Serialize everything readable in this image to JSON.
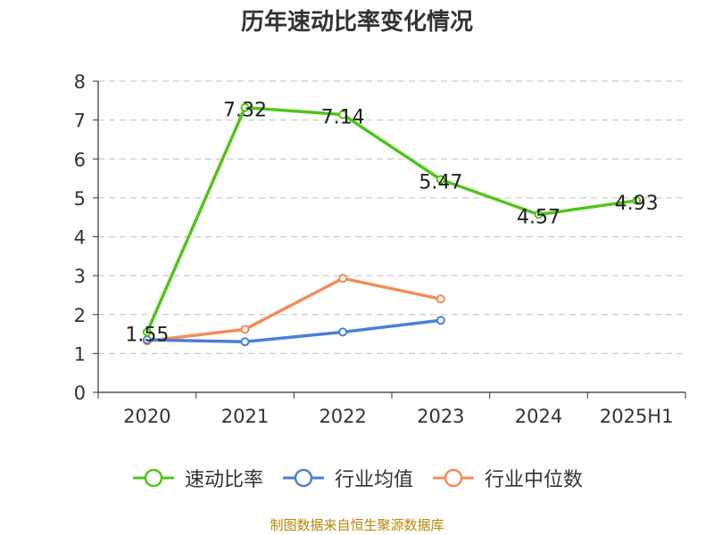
{
  "chart_data": {
    "type": "line",
    "title": "历年速动比率变化情况",
    "categories": [
      "2020",
      "2021",
      "2022",
      "2023",
      "2024",
      "2025H1"
    ],
    "ylim": [
      0,
      8
    ],
    "yticks": [
      0,
      1,
      2,
      3,
      4,
      5,
      6,
      7,
      8
    ],
    "grid": true,
    "legend_position": "bottom",
    "series": [
      {
        "name": "速动比率",
        "color": "#52c41a",
        "values": [
          1.55,
          7.32,
          7.14,
          5.47,
          4.57,
          4.93
        ],
        "labels": [
          "1.55",
          "7.32",
          "7.14",
          "5.47",
          "4.57",
          "4.93"
        ]
      },
      {
        "name": "行业均值",
        "color": "#4a7fd8",
        "values": [
          1.35,
          1.3,
          1.55,
          1.85,
          null,
          null
        ]
      },
      {
        "name": "行业中位数",
        "color": "#f28c5a",
        "values": [
          1.32,
          1.62,
          2.93,
          2.4,
          null,
          null
        ]
      }
    ]
  },
  "source_text": "制图数据来自恒生聚源数据库"
}
